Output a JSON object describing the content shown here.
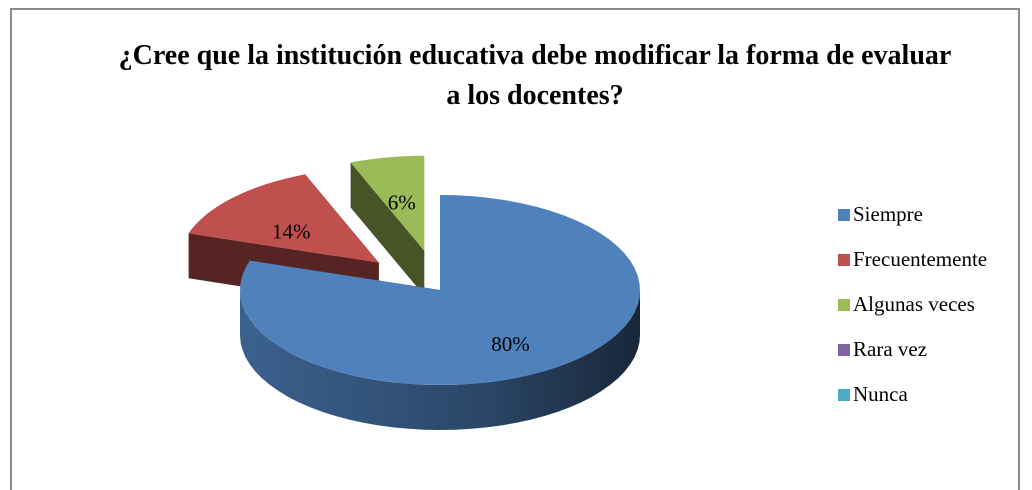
{
  "chart_data": {
    "type": "pie",
    "title": "¿Cree que la institución educativa debe modificar la forma de evaluar a los docentes?",
    "categories": [
      "Siempre",
      "Frecuentemente",
      "Algunas veces",
      "Rara vez",
      "Nunca"
    ],
    "values": [
      80,
      14,
      6,
      0,
      0
    ],
    "value_labels": [
      "80%",
      "14%",
      "6%",
      null,
      null
    ],
    "colors": [
      "#4f81bd",
      "#c0504d",
      "#9bbb59",
      "#8064a2",
      "#4bacc6"
    ],
    "legend": "right"
  }
}
